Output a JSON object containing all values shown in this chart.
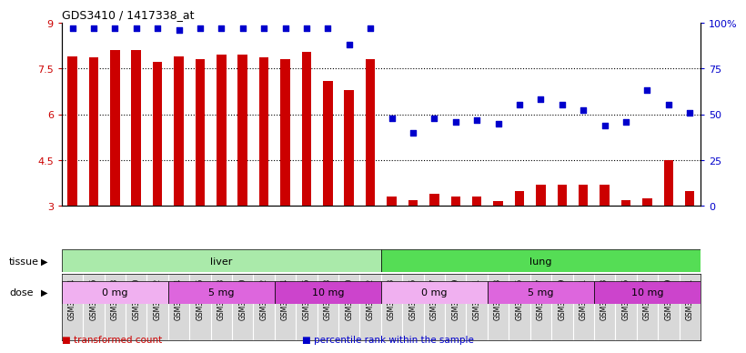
{
  "title": "GDS3410 / 1417338_at",
  "samples": [
    "GSM326944",
    "GSM326946",
    "GSM326948",
    "GSM326950",
    "GSM326952",
    "GSM326954",
    "GSM326956",
    "GSM326958",
    "GSM326960",
    "GSM326962",
    "GSM326964",
    "GSM326966",
    "GSM326968",
    "GSM326970",
    "GSM326972",
    "GSM326943",
    "GSM326945",
    "GSM326947",
    "GSM326949",
    "GSM326951",
    "GSM326953",
    "GSM326955",
    "GSM326957",
    "GSM326959",
    "GSM326961",
    "GSM326963",
    "GSM326965",
    "GSM326967",
    "GSM326969",
    "GSM326971"
  ],
  "bar_values": [
    7.9,
    7.85,
    8.1,
    8.1,
    7.7,
    7.9,
    7.8,
    7.95,
    7.95,
    7.85,
    7.8,
    8.05,
    7.1,
    6.8,
    7.8,
    3.3,
    3.2,
    3.4,
    3.3,
    3.3,
    3.15,
    3.5,
    3.7,
    3.7,
    3.7,
    3.7,
    3.2,
    3.25,
    4.5,
    3.5
  ],
  "percentile_values": [
    97,
    97,
    97,
    97,
    97,
    96,
    97,
    97,
    97,
    97,
    97,
    97,
    97,
    88,
    97,
    48,
    40,
    48,
    46,
    47,
    45,
    55,
    58,
    55,
    52,
    44,
    46,
    63,
    55,
    51
  ],
  "tissue_groups": [
    {
      "label": "liver",
      "start": 0,
      "end": 14,
      "color": "#aaeaaa"
    },
    {
      "label": "lung",
      "start": 15,
      "end": 29,
      "color": "#55dd55"
    }
  ],
  "dose_groups": [
    {
      "label": "0 mg",
      "start": 0,
      "end": 4,
      "color": "#f0b0f0"
    },
    {
      "label": "5 mg",
      "start": 5,
      "end": 9,
      "color": "#dd66dd"
    },
    {
      "label": "10 mg",
      "start": 10,
      "end": 14,
      "color": "#cc44cc"
    },
    {
      "label": "0 mg",
      "start": 15,
      "end": 19,
      "color": "#f0b0f0"
    },
    {
      "label": "5 mg",
      "start": 20,
      "end": 24,
      "color": "#dd66dd"
    },
    {
      "label": "10 mg",
      "start": 25,
      "end": 29,
      "color": "#cc44cc"
    }
  ],
  "bar_color": "#cc0000",
  "dot_color": "#0000cc",
  "bar_bottom": 3.0,
  "ylim_left": [
    3.0,
    9.0
  ],
  "ylim_right": [
    0,
    100
  ],
  "yticks_left": [
    3.0,
    4.5,
    6.0,
    7.5,
    9.0
  ],
  "yticks_right": [
    0,
    25,
    50,
    75,
    100
  ],
  "ytick_labels_left": [
    "3",
    "4.5",
    "6",
    "7.5",
    "9"
  ],
  "ytick_labels_right": [
    "0",
    "25",
    "50",
    "75",
    "100%"
  ],
  "hlines": [
    4.5,
    6.0,
    7.5
  ],
  "legend_items": [
    {
      "label": "transformed count",
      "color": "#cc0000"
    },
    {
      "label": "percentile rank within the sample",
      "color": "#0000cc"
    }
  ],
  "tissue_label": "tissue",
  "dose_label": "dose",
  "xtick_bg": "#d8d8d8"
}
